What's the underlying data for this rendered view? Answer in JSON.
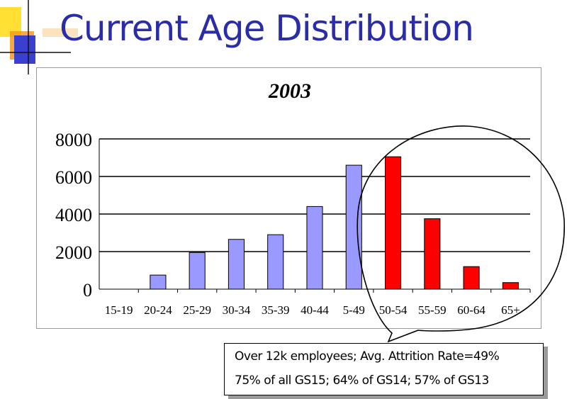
{
  "slide": {
    "title": "Current Age Distribution"
  },
  "callout": {
    "line1": "Over 12k employees; Avg. Attrition Rate=49%",
    "line2": "75% of all GS15; 64% of GS14; 57% of GS13"
  },
  "colors": {
    "title": "#2a2ca8",
    "bar_current": "#9999ff",
    "bar_retirement": "#ff0000",
    "bar_outline": "#000000",
    "decor_yellow": "#ffe033",
    "decor_orange": "#f59a1c",
    "decor_blue": "#3a3fd0"
  },
  "chart_data": {
    "type": "bar",
    "title": "2003",
    "xlabel": "",
    "ylabel": "",
    "categories": [
      "15-19",
      "20-24",
      "25-29",
      "30-34",
      "35-39",
      "40-44",
      "5-49",
      "50-54",
      "55-59",
      "60-64",
      "65+"
    ],
    "values": [
      0,
      750,
      1950,
      2650,
      2900,
      4400,
      6600,
      7050,
      3750,
      1200,
      350
    ],
    "highlighted": [
      false,
      false,
      false,
      false,
      false,
      false,
      false,
      true,
      true,
      true,
      true
    ],
    "ylim": [
      0,
      8000
    ],
    "yticks": [
      0,
      2000,
      4000,
      6000,
      8000
    ],
    "grid": true,
    "legend": "none"
  }
}
